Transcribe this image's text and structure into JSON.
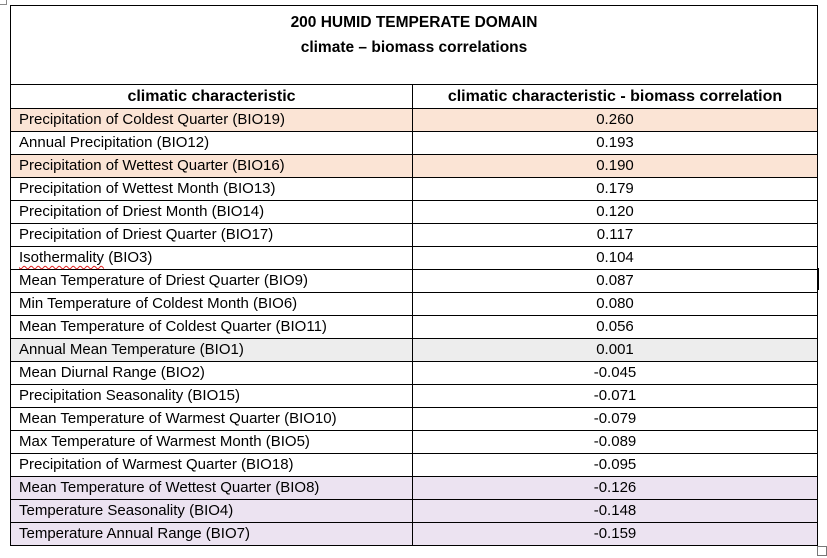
{
  "title": {
    "line1": "200 HUMID TEMPERATE DOMAIN",
    "line2": "climate – biomass correlations"
  },
  "columns": {
    "characteristic": "climatic characteristic",
    "correlation": "climatic characteristic - biomass correlation"
  },
  "rows": [
    {
      "name": "Precipitation of Coldest Quarter (BIO19)",
      "value": "0.260",
      "highlight": "orange"
    },
    {
      "name": "Annual Precipitation (BIO12)",
      "value": "0.193",
      "highlight": "none"
    },
    {
      "name": "Precipitation of Wettest Quarter (BIO16)",
      "value": "0.190",
      "highlight": "orange"
    },
    {
      "name": "Precipitation of Wettest Month (BIO13)",
      "value": "0.179",
      "highlight": "none"
    },
    {
      "name": "Precipitation of Driest Month (BIO14)",
      "value": "0.120",
      "highlight": "none"
    },
    {
      "name": "Precipitation of Driest Quarter (BIO17)",
      "value": "0.117",
      "highlight": "none"
    },
    {
      "name": "Isothermality (BIO3)",
      "value": "0.104",
      "highlight": "none"
    },
    {
      "name": "Mean Temperature of Driest Quarter (BIO9)",
      "value": "0.087",
      "highlight": "none"
    },
    {
      "name": "Min Temperature of Coldest Month (BIO6)",
      "value": "0.080",
      "highlight": "none"
    },
    {
      "name": "Mean Temperature of Coldest Quarter (BIO11)",
      "value": "0.056",
      "highlight": "none"
    },
    {
      "name": "Annual Mean Temperature (BIO1)",
      "value": "0.001",
      "highlight": "gray"
    },
    {
      "name": "Mean Diurnal Range (BIO2)",
      "value": "-0.045",
      "highlight": "none"
    },
    {
      "name": "Precipitation Seasonality (BIO15)",
      "value": "-0.071",
      "highlight": "none"
    },
    {
      "name": "Mean Temperature of Warmest Quarter (BIO10)",
      "value": "-0.079",
      "highlight": "none"
    },
    {
      "name": "Max Temperature of Warmest Month (BIO5)",
      "value": "-0.089",
      "highlight": "none"
    },
    {
      "name": "Precipitation of Warmest Quarter (BIO18)",
      "value": "-0.095",
      "highlight": "none"
    },
    {
      "name": "Mean Temperature of Wettest Quarter (BIO8)",
      "value": "-0.126",
      "highlight": "purple"
    },
    {
      "name": "Temperature Seasonality (BIO4)",
      "value": "-0.148",
      "highlight": "purple"
    },
    {
      "name": "Temperature Annual Range (BIO7)",
      "value": "-0.159",
      "highlight": "purple"
    }
  ],
  "colors": {
    "orange": "#fbe4d5",
    "gray": "#ededed",
    "purple": "#ece3f1",
    "spellcheck": "#e02020"
  }
}
